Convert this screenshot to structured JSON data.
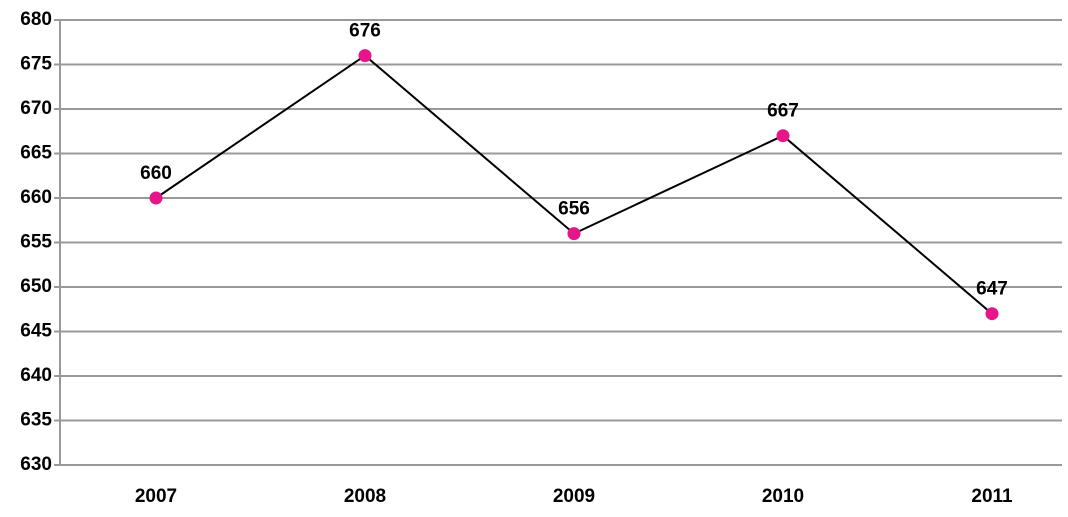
{
  "chart_data": {
    "type": "line",
    "categories": [
      "2007",
      "2008",
      "2009",
      "2010",
      "2011"
    ],
    "values": [
      660,
      676,
      656,
      667,
      647
    ],
    "line_color": "#000000",
    "marker_color": "#e6168a",
    "ylim": [
      630,
      680
    ],
    "yticks": [
      630,
      635,
      640,
      645,
      650,
      655,
      660,
      665,
      670,
      675,
      680
    ],
    "grid": true
  }
}
